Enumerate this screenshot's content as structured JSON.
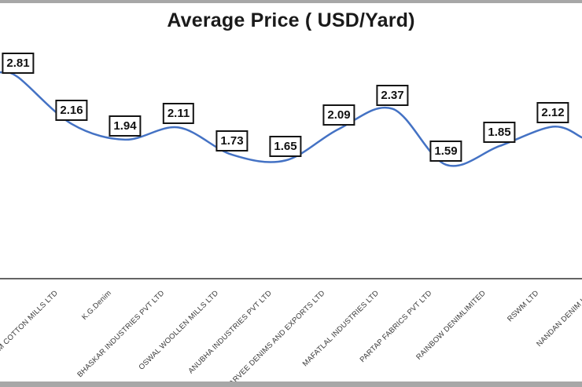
{
  "window": {
    "border_color": "#a7a7a7"
  },
  "chart_data": {
    "type": "line",
    "title": "Average Price ( USD/Yard)",
    "categories": [
      "M COTTON MILLS LTD",
      "K.G.Denim",
      "BHASKAR INDUSTRIES PVT LTD",
      "OSWAL WOOLLEN MILLS LTD",
      "ANUBHA INDUSTRIES PVT LTD",
      "AARVEE DENIMS AND EXPORTS LTD",
      "MAFATLAL INDUSTRIES LTD",
      "PARTAP FABRICS PVT LTD",
      "RAINBOW DENIMLIMITED",
      "RSWM LTD",
      "NANDAN DENIM LTD"
    ],
    "values": [
      2.81,
      2.16,
      1.94,
      2.11,
      1.73,
      1.65,
      2.09,
      2.37,
      1.59,
      1.85,
      2.12
    ],
    "line_color": "#4472C4",
    "label_box_bg": "#ffffff",
    "label_box_border": "#141414",
    "axis_color": "#646464",
    "baseline_value": 0,
    "ylim": [
      0,
      3.9
    ],
    "grid": false,
    "legend": "none",
    "data_label_position": "above",
    "x_label_rotation_deg": 45,
    "cropped_line_edges": {
      "left_edge_value": 2.88,
      "right_edge_value": 1.97
    },
    "crop_note": "chart is cropped: first category partially visible at left, last category and final point cut at right"
  }
}
